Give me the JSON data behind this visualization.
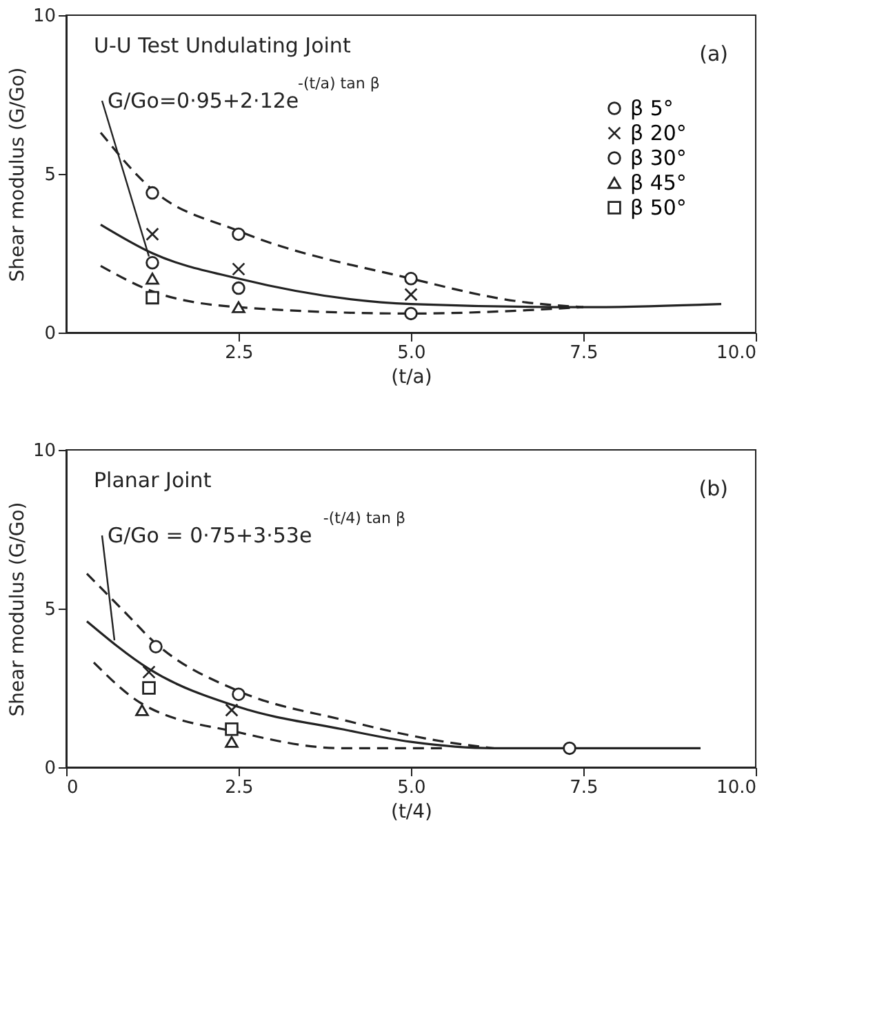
{
  "chart_data": [
    {
      "type": "scatter",
      "title": "U-U Test Undulating Joint",
      "xlabel": "(t/a)",
      "ylabel": "Shear modulus (G/Go)",
      "annotations": [
        "(a)",
        {
          "text": "G/Go=0·95+2·12e$^{-(t/a) tan β}$",
          "x": 1.2,
          "y": 2.4
        }
      ],
      "xlim": [
        0,
        10
      ],
      "ylim": [
        0,
        10
      ],
      "xticks": [
        2.5,
        {
          "value": 5,
          "label": "5.0"
        },
        7.5,
        {
          "value": 10,
          "label": "10.0"
        }
      ],
      "yticks": [
        0,
        5,
        10
      ],
      "grid": false,
      "legend": "right",
      "series": [
        {
          "type": "line",
          "line_style": "dashed",
          "marker": "none",
          "color": "#222222",
          "x": [
            0.5,
            1.25,
            2.5,
            5.0,
            6.5,
            7.5
          ],
          "values": [
            6.3,
            4.5,
            3.2,
            1.7,
            1.0,
            0.8
          ]
        },
        {
          "type": "line",
          "line_style": "solid",
          "marker": "none",
          "color": "#222222",
          "x": [
            0.5,
            1.25,
            2.5,
            5.0,
            7.5,
            9.5
          ],
          "values": [
            3.4,
            2.5,
            1.7,
            0.9,
            0.8,
            0.9
          ]
        },
        {
          "type": "line",
          "line_style": "dashed",
          "marker": "none",
          "color": "#222222",
          "x": [
            0.5,
            1.25,
            2.5,
            5.0,
            7.5
          ],
          "values": [
            2.1,
            1.3,
            0.8,
            0.6,
            0.8
          ]
        },
        {
          "name": "β 5°",
          "marker": "circle",
          "color": "#222222",
          "x": [
            1.25,
            2.5,
            5.0,
            1.25,
            2.5,
            5.0
          ],
          "values": [
            4.4,
            3.1,
            1.7,
            2.2,
            1.4,
            0.6
          ]
        },
        {
          "name": "β 20°",
          "marker": "cross",
          "color": "#222222",
          "x": [
            1.25,
            2.5,
            5.0
          ],
          "values": [
            3.1,
            2.0,
            1.2
          ]
        },
        {
          "name": "β 30°",
          "marker": "circle",
          "color": "#222222"
        },
        {
          "name": "β 45°",
          "marker": "triangle",
          "color": "#222222",
          "x": [
            1.25,
            2.5
          ],
          "values": [
            1.7,
            0.8
          ]
        },
        {
          "name": "β 50°",
          "marker": "square",
          "color": "#222222",
          "x": [
            1.25
          ],
          "values": [
            1.1
          ]
        }
      ]
    },
    {
      "type": "scatter",
      "title": "Planar Joint",
      "xlabel": "(t/4)",
      "ylabel": "Shear modulus (G/Go)",
      "annotations": [
        "(b)",
        {
          "text": "G/Go = 0·75+3·53e$^{-(t/4) tan β}$",
          "x": 0.7,
          "y": 4.0
        }
      ],
      "xlim": [
        0,
        10
      ],
      "ylim": [
        0,
        10
      ],
      "xticks": [
        0,
        2.5,
        {
          "value": 5,
          "label": "5.0"
        },
        7.5,
        {
          "value": 10,
          "label": "10.0"
        }
      ],
      "yticks": [
        0,
        5,
        10
      ],
      "grid": false,
      "legend": false,
      "series": [
        {
          "type": "line",
          "line_style": "dashed",
          "marker": "none",
          "color": "#222222",
          "x": [
            0.3,
            0.8,
            1.3,
            2.5,
            4.0,
            5.5,
            6.2
          ],
          "values": [
            6.1,
            5.0,
            3.9,
            2.4,
            1.5,
            0.8,
            0.6
          ]
        },
        {
          "type": "line",
          "line_style": "solid",
          "marker": "none",
          "color": "#222222",
          "x": [
            0.3,
            1.2,
            2.5,
            4.0,
            5.0,
            6.2,
            7.3,
            9.2
          ],
          "values": [
            4.6,
            3.1,
            1.9,
            1.2,
            0.8,
            0.6,
            0.6,
            0.6
          ]
        },
        {
          "type": "line",
          "line_style": "dashed",
          "marker": "none",
          "color": "#222222",
          "x": [
            0.4,
            1.1,
            2.5,
            4.0,
            5.5
          ],
          "values": [
            3.3,
            2.0,
            1.1,
            0.6,
            0.6
          ]
        },
        {
          "marker": "circle",
          "color": "#222222",
          "x": [
            1.3,
            2.5
          ],
          "values": [
            3.8,
            2.3
          ]
        },
        {
          "marker": "cross",
          "color": "#222222",
          "x": [
            1.2,
            2.4
          ],
          "values": [
            3.0,
            1.8
          ]
        },
        {
          "marker": "circle",
          "color": "#222222",
          "x": [
            7.3
          ],
          "values": [
            0.6
          ]
        },
        {
          "marker": "triangle",
          "color": "#222222",
          "x": [
            1.1,
            2.4
          ],
          "values": [
            1.8,
            0.8
          ]
        },
        {
          "marker": "square",
          "color": "#222222",
          "x": [
            1.2,
            2.4
          ],
          "values": [
            2.5,
            1.2
          ]
        }
      ]
    }
  ]
}
